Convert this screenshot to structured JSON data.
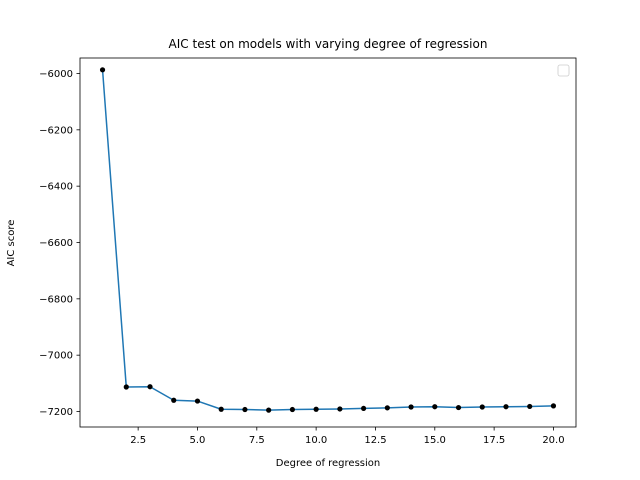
{
  "chart_data": {
    "type": "line",
    "title": "AIC test on models with varying degree of regression",
    "xlabel": "Degree of regression",
    "ylabel": "AIC score",
    "xlim": [
      0.05,
      20.95
    ],
    "ylim": [
      -7255,
      -5945
    ],
    "xticks": [
      2.5,
      5.0,
      7.5,
      10.0,
      12.5,
      15.0,
      17.5,
      20.0
    ],
    "xtick_labels": [
      "2.5",
      "5.0",
      "7.5",
      "10.0",
      "12.5",
      "15.0",
      "17.5",
      "20.0"
    ],
    "yticks": [
      -7200,
      -7000,
      -6800,
      -6600,
      -6400,
      -6200,
      -6000
    ],
    "ytick_labels": [
      "−7200",
      "−7000",
      "−6800",
      "−6600",
      "−6400",
      "−6200",
      "−6000"
    ],
    "grid": false,
    "legend": {
      "placement": "top-right",
      "entries": []
    },
    "series": [
      {
        "x": [
          1,
          2,
          3,
          4,
          5,
          6,
          7,
          8,
          9,
          10,
          11,
          12,
          13,
          14,
          15,
          16,
          17,
          18,
          19,
          20
        ],
        "y": [
          -5987,
          -7113,
          -7112,
          -7160,
          -7163,
          -7192,
          -7193,
          -7195,
          -7193,
          -7192,
          -7191,
          -7189,
          -7187,
          -7184,
          -7183,
          -7186,
          -7184,
          -7183,
          -7182,
          -7180
        ],
        "line_color": "#1f77b4",
        "marker_color": "#000000"
      }
    ]
  }
}
